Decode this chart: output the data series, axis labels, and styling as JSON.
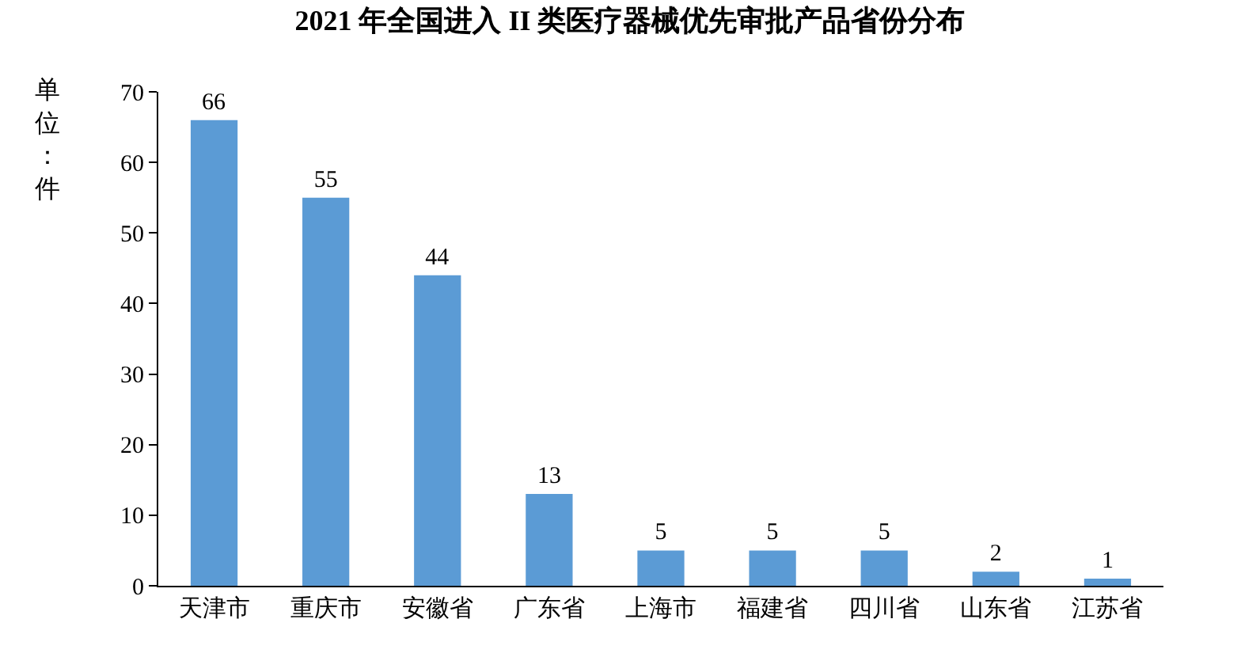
{
  "chart_data": {
    "type": "bar",
    "title": "2021 年全国进入 II 类医疗器械优先审批产品省份分布",
    "ylabel": "单位：件",
    "categories": [
      "天津市",
      "重庆市",
      "安徽省",
      "广东省",
      "上海市",
      "福建省",
      "四川省",
      "山东省",
      "江苏省"
    ],
    "values": [
      66,
      55,
      44,
      13,
      5,
      5,
      5,
      2,
      1
    ],
    "color": "#5b9bd5",
    "ylim": [
      0,
      70
    ],
    "yticks": [
      0,
      10,
      20,
      30,
      40,
      50,
      60,
      70
    ],
    "data_labels": true
  }
}
